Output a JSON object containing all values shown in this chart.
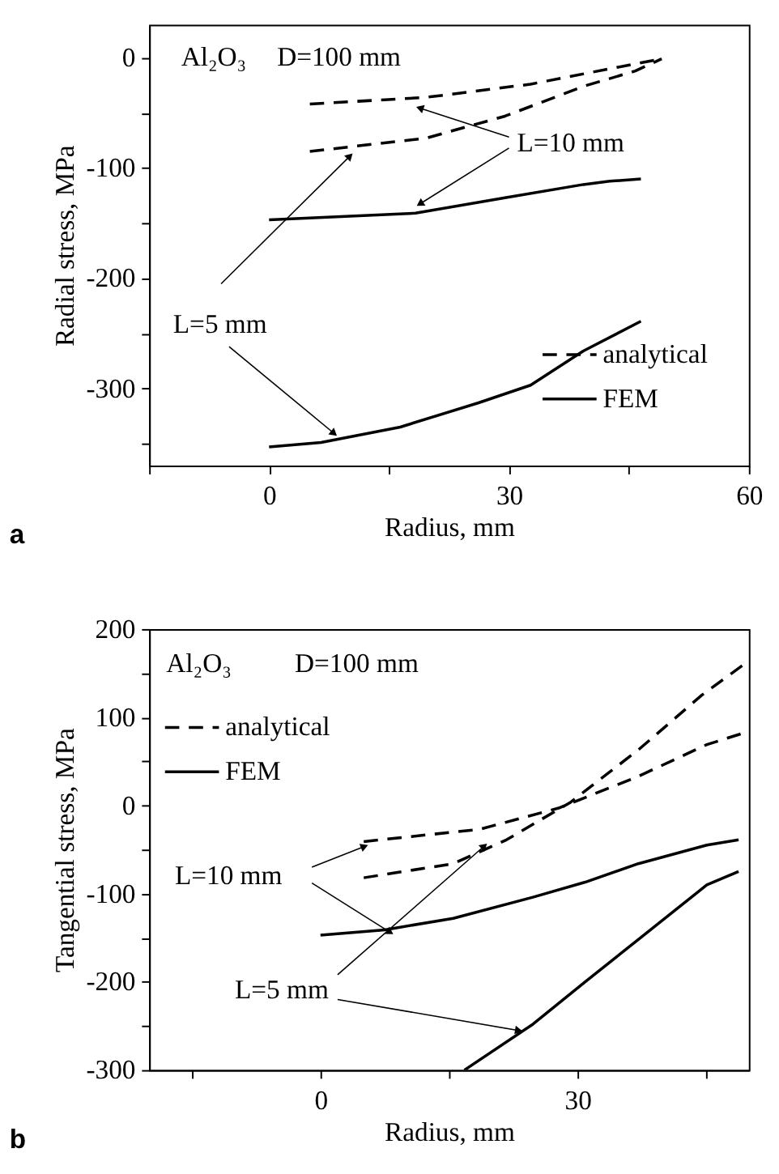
{
  "chart_data": [
    {
      "type": "line",
      "xlabel": "Radius, mm",
      "ylabel": "Radial stress, MPa",
      "xlim": [
        -15,
        60
      ],
      "xticks": [
        {
          "value": -15,
          "label": null
        },
        0,
        {
          "value": 15,
          "label": null
        },
        30,
        {
          "value": 45,
          "label": null
        },
        60
      ],
      "ylim": [
        -370,
        30
      ],
      "yticks": [
        {
          "value": -350,
          "label": null
        },
        -300,
        {
          "value": -250,
          "label": null
        },
        -200,
        {
          "value": -150,
          "label": null
        },
        -100,
        {
          "value": -50,
          "label": null
        },
        0
      ],
      "legend": "bottom right",
      "annotations": [
        "Al₂O₃",
        "D=100 mm",
        {
          "text": "L=10 mm",
          "x": 19,
          "y": -132
        },
        {
          "text": "L=5 mm",
          "x": 8,
          "y": -340
        },
        "a"
      ],
      "series": [
        {
          "name": "analytical",
          "color": "#000000",
          "line_style": "dashed",
          "x": [
            5.1,
            19.6,
            32.7,
            42.6,
            49.1
          ],
          "values": [
            -42,
            -36,
            -24,
            -10,
            -1
          ]
        },
        {
          "name": "analytical",
          "color": "#000000",
          "line_style": "dashed",
          "x": [
            5.1,
            19.6,
            29.5,
            39.3,
            45.8,
            49.1
          ],
          "values": [
            -85,
            -73,
            -53,
            -26,
            -12,
            -1
          ]
        },
        {
          "name": "FEM",
          "color": "#000000",
          "line_style": "solid",
          "x": [
            0,
            18.3,
            29.5,
            39.3,
            42.6,
            46.5
          ],
          "values": [
            -147,
            -141,
            -127,
            -115,
            -112,
            -110
          ]
        },
        {
          "name": "FEM",
          "color": "#000000",
          "line_style": "solid",
          "x": [
            0,
            6.5,
            16.4,
            26.2,
            32.7,
            39.3,
            46.5
          ],
          "values": [
            -353,
            -349,
            -335,
            -313,
            -297,
            -266,
            -239
          ]
        }
      ]
    },
    {
      "type": "line",
      "xlabel": "Radius, mm",
      "ylabel": "Tangential stress, MPa",
      "xlim": [
        -20,
        50
      ],
      "xticks": [
        {
          "value": -15,
          "label": null
        },
        0,
        {
          "value": 15,
          "label": null
        },
        30,
        {
          "value": 45,
          "label": null
        }
      ],
      "ylim": [
        -300,
        200
      ],
      "yticks": [
        -300,
        {
          "value": -250,
          "label": null
        },
        -200,
        {
          "value": -150,
          "label": null
        },
        -100,
        {
          "value": -50,
          "label": null
        },
        0,
        {
          "value": 50,
          "label": null
        },
        100,
        {
          "value": 150,
          "label": null
        },
        200
      ],
      "legend": "top left",
      "annotations": [
        "Al₂O₃",
        "D=100 mm",
        {
          "text": "L=10 mm",
          "x": 8,
          "y": -143
        },
        {
          "text": "L=5 mm",
          "x": 23,
          "y": -255
        },
        "b"
      ],
      "series": [
        {
          "name": "analytical",
          "color": "#000000",
          "line_style": "dashed",
          "x": [
            5.05,
            18.6,
            27.8,
            37.1,
            45.1,
            50
          ],
          "values": [
            -41,
            -27,
            -3,
            33,
            69,
            84
          ]
        },
        {
          "name": "analytical",
          "color": "#000000",
          "line_style": "dashed",
          "x": [
            5.05,
            15.5,
            21.7,
            29.1,
            37.1,
            44.5,
            50
          ],
          "values": [
            -82,
            -66,
            -39,
            3,
            63,
            125,
            164
          ]
        },
        {
          "name": "FEM",
          "color": "#000000",
          "line_style": "solid",
          "x": [
            0,
            7.5,
            15.5,
            24.8,
            30.9,
            37.1,
            45.1,
            48.8
          ],
          "values": [
            -147,
            -141,
            -128,
            -104,
            -87,
            -66,
            -45,
            -39
          ]
        },
        {
          "name": "FEM",
          "color": "#000000",
          "line_style": "solid",
          "x": [
            16.8,
            24.8,
            30.9,
            37.1,
            45.1,
            48.8
          ],
          "values": [
            -300,
            -248,
            -200,
            -152,
            -90,
            -75
          ]
        }
      ]
    }
  ]
}
